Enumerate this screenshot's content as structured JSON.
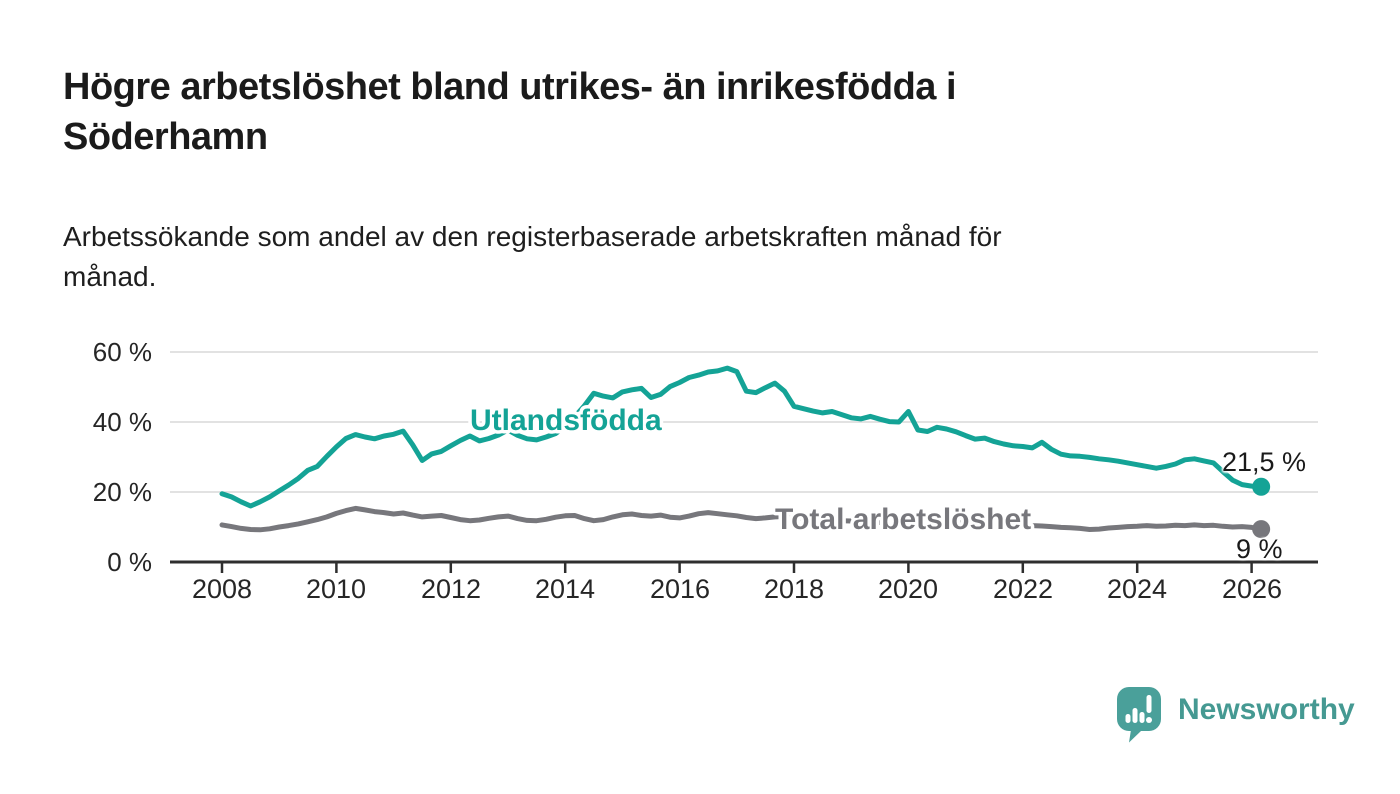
{
  "header": {
    "title_lines": [
      "Högre arbetslöshet bland utrikes- än inrikesfödda i",
      "Söderhamn"
    ],
    "subtitle_lines": [
      "Arbetssökande som andel av den registerbaserade arbetskraften månad för",
      "månad."
    ]
  },
  "chart_data": {
    "type": "line",
    "title": "Högre arbetslöshet bland utrikes- än inrikesfödda i Söderhamn",
    "subtitle": "Arbetssökande som andel av den registerbaserade arbetskraften månad för månad.",
    "x_axis": {
      "start_year": 2008.0,
      "step_years": 0.16667,
      "tick_labels": [
        "2008",
        "2010",
        "2012",
        "2014",
        "2016",
        "2018",
        "2020",
        "2022",
        "2024",
        "2026"
      ],
      "tick_values": [
        2008,
        2010,
        2012,
        2014,
        2016,
        2018,
        2020,
        2022,
        2024,
        2026
      ]
    },
    "y_axis": {
      "unit": "%",
      "tick_labels": [
        "60 %",
        "40 %",
        "20 %",
        "0 %"
      ],
      "tick_values": [
        60,
        40,
        20,
        0
      ],
      "ylim": [
        0,
        62
      ],
      "grid": true
    },
    "legend_position": "inline-labels",
    "series": [
      {
        "name": "Utlandsfödda",
        "color": "#14a396",
        "end_label": "21,5 %",
        "end_value": 21.5,
        "values": [
          19.5,
          18.6,
          17.2,
          16.0,
          17.2,
          18.6,
          20.3,
          22.0,
          23.9,
          26.2,
          27.3,
          30.2,
          32.9,
          35.3,
          36.4,
          35.7,
          35.2,
          36.0,
          36.5,
          37.4,
          33.5,
          29.0,
          30.9,
          31.6,
          33.2,
          34.7,
          36.0,
          34.6,
          35.3,
          36.3,
          37.7,
          36.2,
          35.2,
          34.9,
          35.7,
          36.7,
          38.7,
          41.5,
          44.6,
          48.2,
          47.4,
          46.9,
          48.6,
          49.2,
          49.6,
          47.0,
          47.9,
          50.1,
          51.3,
          52.7,
          53.4,
          54.3,
          54.6,
          55.4,
          54.4,
          48.8,
          48.4,
          49.8,
          51.1,
          48.8,
          44.5,
          43.8,
          43.1,
          42.6,
          43.0,
          42.1,
          41.2,
          40.9,
          41.6,
          40.8,
          40.1,
          40.0,
          43.0,
          37.7,
          37.3,
          38.5,
          38.0,
          37.2,
          36.1,
          35.1,
          35.4,
          34.4,
          33.7,
          33.2,
          33.0,
          32.6,
          34.2,
          32.2,
          30.8,
          30.3,
          30.2,
          29.9,
          29.5,
          29.2,
          28.8,
          28.3,
          27.8,
          27.3,
          26.8,
          27.3,
          28.0,
          29.2,
          29.5,
          28.9,
          28.3,
          25.8,
          23.4,
          22.1,
          21.7,
          21.5
        ]
      },
      {
        "name": "Total arbetslöshet",
        "color": "#77777c",
        "end_label": "9 %",
        "end_value": 9.4,
        "values": [
          10.6,
          10.1,
          9.6,
          9.3,
          9.2,
          9.5,
          10.0,
          10.4,
          10.9,
          11.5,
          12.1,
          12.9,
          13.9,
          14.7,
          15.3,
          14.9,
          14.4,
          14.1,
          13.7,
          14.0,
          13.4,
          12.9,
          13.1,
          13.3,
          12.7,
          12.1,
          11.8,
          12.0,
          12.5,
          12.9,
          13.1,
          12.4,
          11.9,
          11.8,
          12.2,
          12.8,
          13.2,
          13.3,
          12.4,
          11.8,
          12.1,
          12.9,
          13.5,
          13.7,
          13.3,
          13.1,
          13.4,
          12.8,
          12.6,
          13.1,
          13.8,
          14.1,
          13.8,
          13.5,
          13.2,
          12.7,
          12.4,
          12.6,
          12.9,
          13.0,
          12.7,
          12.5,
          12.3,
          12.1,
          12.0,
          11.8,
          11.7,
          11.5,
          11.4,
          11.3,
          11.5,
          11.7,
          12.0,
          12.3,
          12.5,
          12.4,
          12.2,
          12.0,
          11.8,
          11.5,
          11.2,
          11.0,
          10.9,
          10.7,
          10.6,
          10.4,
          10.3,
          10.1,
          9.9,
          9.8,
          9.6,
          9.3,
          9.4,
          9.7,
          9.9,
          10.1,
          10.2,
          10.4,
          10.2,
          10.3,
          10.5,
          10.4,
          10.6,
          10.4,
          10.5,
          10.2,
          10.0,
          10.1,
          9.9,
          9.4
        ]
      }
    ]
  },
  "footer": {
    "brand": "Newsworthy",
    "brand_color": "#459992",
    "logo_icon": "chart-pin-icon"
  }
}
